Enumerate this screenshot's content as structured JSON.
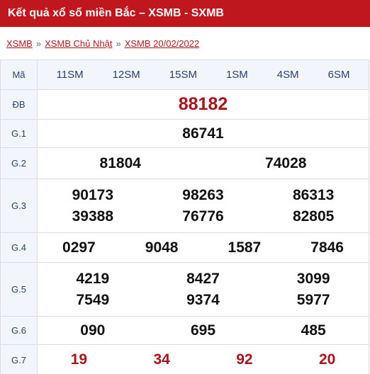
{
  "header": {
    "title": "Kết quả xổ số miền Bắc – XSMB - SXMB"
  },
  "breadcrumb": {
    "items": [
      "XSMB",
      "XSMB Chủ Nhật",
      "XSMB 20/02/2022"
    ],
    "separator": "»"
  },
  "table": {
    "code_label": "Mã",
    "codes": [
      "11SM",
      "12SM",
      "15SM",
      "1SM",
      "4SM",
      "6SM"
    ],
    "rows": {
      "db": {
        "label": "ĐB",
        "values": [
          "88182"
        ]
      },
      "g1": {
        "label": "G.1",
        "values": [
          "86741"
        ]
      },
      "g2": {
        "label": "G.2",
        "values": [
          "81804",
          "74028"
        ]
      },
      "g3": {
        "label": "G.3",
        "values": [
          "90173",
          "98263",
          "86313",
          "39388",
          "76776",
          "82805"
        ]
      },
      "g4": {
        "label": "G.4",
        "values": [
          "0297",
          "9048",
          "1587",
          "7846"
        ]
      },
      "g5": {
        "label": "G.5",
        "values": [
          "4219",
          "8427",
          "3099",
          "7549",
          "9374",
          "5977"
        ]
      },
      "g6": {
        "label": "G.6",
        "values": [
          "090",
          "695",
          "485"
        ]
      },
      "g7": {
        "label": "G.7",
        "values": [
          "19",
          "34",
          "92",
          "20"
        ]
      }
    }
  },
  "colors": {
    "header_bg": "#c0161e",
    "accent_red": "#a8141b",
    "label_blue": "#2c3e6e",
    "label_bg": "#f2f5fb"
  }
}
